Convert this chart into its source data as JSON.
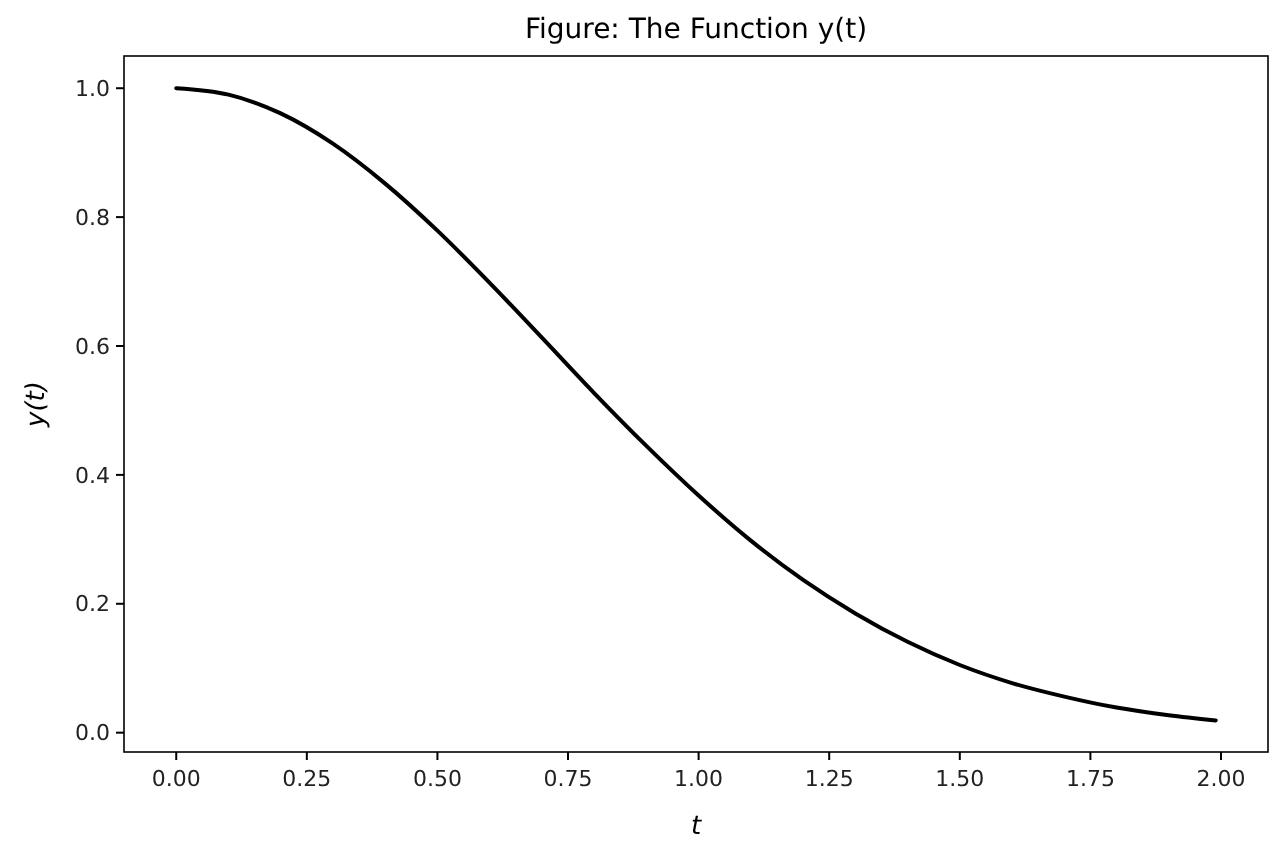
{
  "chart_data": {
    "type": "line",
    "title": "Figure: The Function y(t)",
    "xlabel": "t",
    "ylabel": "y(t)",
    "x": [
      0,
      0.1,
      0.2,
      0.3,
      0.4,
      0.5,
      0.6,
      0.7,
      0.8,
      0.9,
      1.0,
      1.1,
      1.2,
      1.3,
      1.4,
      1.5,
      1.6,
      1.7,
      1.8,
      1.9,
      1.99
    ],
    "series": [
      {
        "color": "#000000",
        "values": [
          1.0,
          0.99,
          0.961,
          0.914,
          0.852,
          0.779,
          0.698,
          0.613,
          0.527,
          0.445,
          0.368,
          0.298,
          0.237,
          0.185,
          0.141,
          0.105,
          0.077,
          0.056,
          0.039,
          0.027,
          0.019
        ]
      }
    ],
    "xlim": [
      -0.1,
      2.09
    ],
    "ylim": [
      -0.03,
      1.05
    ],
    "xticks": [
      {
        "value": 0,
        "label": "0.00"
      },
      0.25,
      {
        "value": 0.5,
        "label": "0.50"
      },
      0.75,
      {
        "value": 1,
        "label": "1.00"
      },
      1.25,
      {
        "value": 1.5,
        "label": "1.50"
      },
      1.75,
      {
        "value": 2,
        "label": "2.00"
      }
    ],
    "yticks": [
      {
        "value": 0,
        "label": "0.0"
      },
      0.2,
      0.4,
      0.6,
      0.8,
      {
        "value": 1,
        "label": "1.0"
      }
    ],
    "grid": false,
    "marker": "none",
    "line_style": "solid"
  }
}
